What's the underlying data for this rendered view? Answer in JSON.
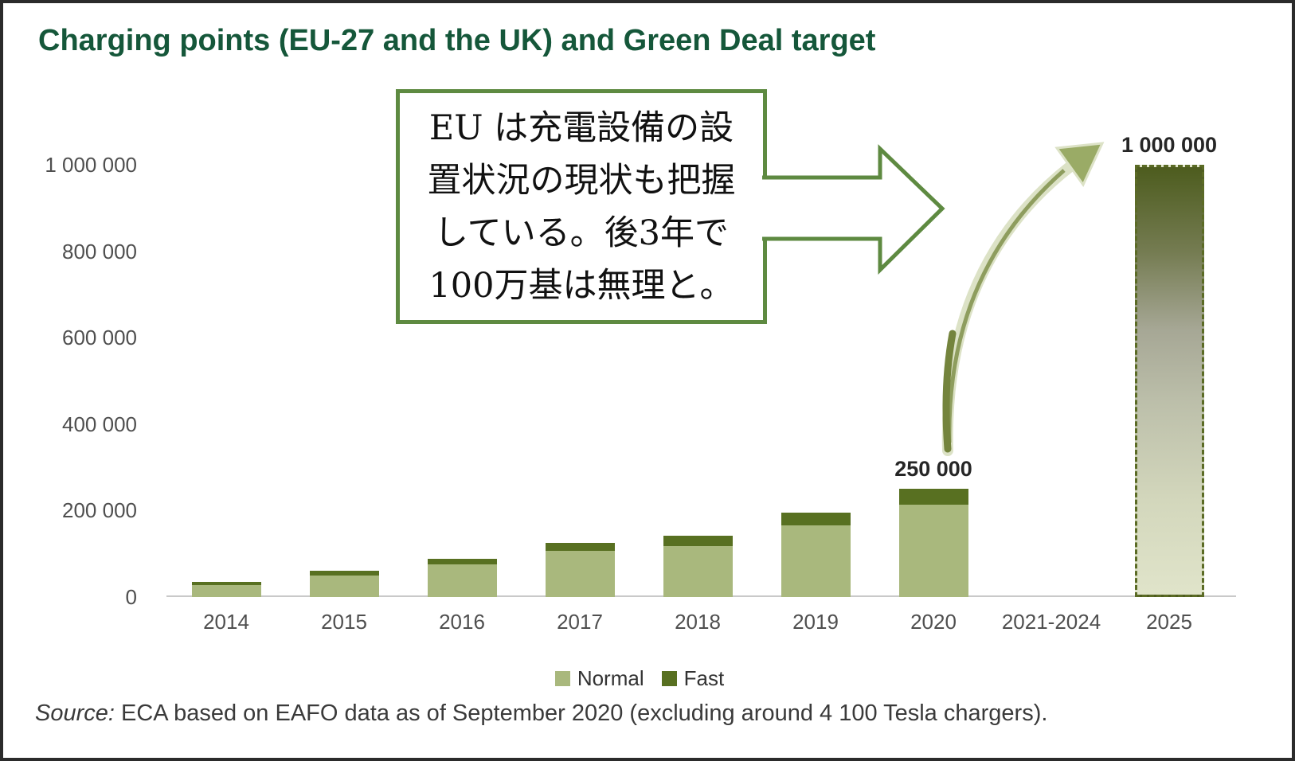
{
  "title": "Charging points (EU-27 and the UK) and Green Deal target",
  "callout": {
    "lines": [
      "EU は充電設備の設",
      "置状況の現状も把握",
      "している。後3年で",
      "100万基は無理と。"
    ]
  },
  "legend": {
    "items": [
      {
        "label": "Normal",
        "color": "#a9b87d"
      },
      {
        "label": "Fast",
        "color": "#587021"
      }
    ]
  },
  "source": {
    "prefix": "Source:",
    "text": "ECA based on EAFO data as of September 2020 (excluding around 4 100 Tesla chargers)."
  },
  "colors": {
    "title_green": "#15573a",
    "callout_border_green": "#5e8a41",
    "normal_bar": "#a9b87d",
    "fast_bar": "#587021",
    "axis_line_gray": "#c9c9c9",
    "tick_text_gray": "#4f4f4f",
    "value_label": "#262626",
    "target_dash_olive": "#5b6b25",
    "swoosh_pale": "#dce2c6",
    "swoosh_olive": "#8e9d5e"
  },
  "chart_data": {
    "type": "bar",
    "stacked": true,
    "title": "Charging points (EU-27 and the UK) and Green Deal target",
    "categories": [
      "2014",
      "2015",
      "2016",
      "2017",
      "2018",
      "2019",
      "2020",
      "2021-2024",
      "2025"
    ],
    "series": [
      {
        "name": "Normal",
        "color": "#a9b87d",
        "values": [
          28000,
          49000,
          75000,
          107000,
          118000,
          165000,
          213000,
          null,
          null
        ]
      },
      {
        "name": "Fast",
        "color": "#587021",
        "values": [
          7000,
          11000,
          14000,
          18000,
          24000,
          30000,
          37000,
          null,
          null
        ]
      }
    ],
    "target_bar": {
      "category": "2025",
      "value": 1000000,
      "style": "dashed-gradient",
      "description": "Green Deal target"
    },
    "bar_labels": [
      {
        "category": "2020",
        "text": "250 000"
      },
      {
        "category": "2025",
        "text": "1 000 000"
      }
    ],
    "xlabel": "",
    "ylabel": "",
    "ylim": [
      0,
      1000000
    ],
    "ytick_values": [
      0,
      200000,
      400000,
      600000,
      800000,
      1000000
    ],
    "yticks": [
      "0",
      "200 000",
      "400 000",
      "600 000",
      "800 000",
      "1 000 000"
    ],
    "grid": false,
    "legend_position": "bottom"
  }
}
